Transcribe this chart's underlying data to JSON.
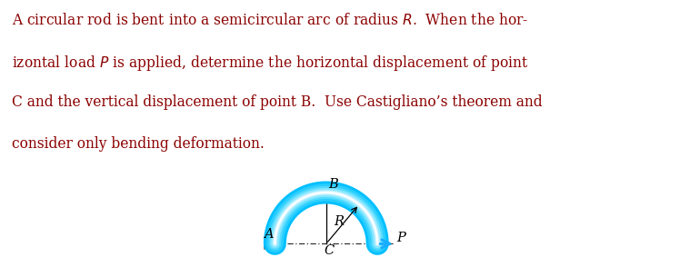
{
  "text_lines": [
    "A circular rod is bent into a semicircular arc of radius $R$.  When the hor-",
    "izontal load $P$ is applied, determine the horizontal displacement of point",
    "C and the vertical displacement of point B.  Use Castigliano’s theorem and",
    "consider only bending deformation."
  ],
  "text_color": "#8B0000",
  "background_color": "#ffffff",
  "label_A": "A",
  "label_B": "B",
  "label_C": "C",
  "label_P": "P",
  "label_R": "R",
  "text_fontsize": 11.2,
  "label_fontsize": 10.5,
  "arc_colors": [
    "#00BFFF",
    "#29CEFF",
    "#55DAFF",
    "#88E8FF",
    "#BBEFFF",
    "#E0F8FF",
    "#ffffff"
  ],
  "arc_linewidths": [
    18,
    14,
    10,
    7,
    4,
    2.5,
    1.2
  ],
  "arrow_color": "#1AADFF",
  "wall_color_light": "#D8D8D8",
  "wall_color_dark": "#888888",
  "dashdot_color": "#333333",
  "line_color": "#000000"
}
